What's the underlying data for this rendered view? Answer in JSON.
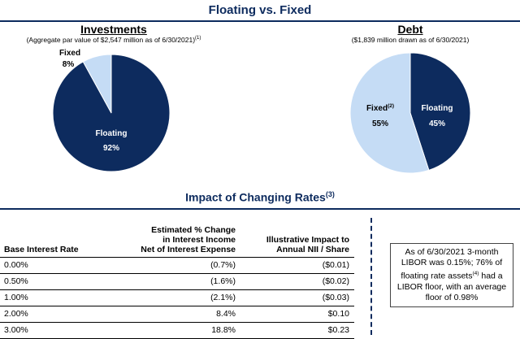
{
  "header": {
    "title": "Floating vs. Fixed"
  },
  "investments": {
    "title": "Investments",
    "subtitle": "(Aggregate par value of $2,547 million as of 6/30/2021)",
    "subtitle_sup": "(1)",
    "labels": {
      "floating": "Floating",
      "floating_pct": "92%",
      "fixed": "Fixed",
      "fixed_pct": "8%"
    }
  },
  "debt": {
    "title": "Debt",
    "subtitle": "($1,839 million drawn as of 6/30/2021)",
    "labels": {
      "floating": "Floating",
      "floating_pct": "45%",
      "fixed": "Fixed",
      "fixed_sup": "(2)",
      "fixed_pct": "55%"
    }
  },
  "colors": {
    "floating": "#0d2b5e",
    "fixed": "#c5dcf5",
    "accent": "#0d2b5e"
  },
  "impact": {
    "title": "Impact of Changing Rates",
    "title_sup": "(3)",
    "columns": {
      "rate": "Base Interest Rate",
      "change_l1": "Estimated % Change",
      "change_l2": "in Interest Income",
      "change_l3": "Net of Interest Expense",
      "nii_l1": "Illustrative Impact to",
      "nii_l2": "Annual NII / Share"
    },
    "rows": [
      {
        "rate": "0.00%",
        "change": "(0.7%)",
        "nii": "($0.01)"
      },
      {
        "rate": "0.50%",
        "change": "(1.6%)",
        "nii": "($0.02)"
      },
      {
        "rate": "1.00%",
        "change": "(2.1%)",
        "nii": "($0.03)"
      },
      {
        "rate": "2.00%",
        "change": "8.4%",
        "nii": "$0.10"
      },
      {
        "rate": "3.00%",
        "change": "18.8%",
        "nii": "$0.23"
      }
    ]
  },
  "note": {
    "part1": "As of 6/30/2021 3-month LIBOR was 0.15%; 76% of floating rate assets",
    "sup": "(4)",
    "part2": " had a LIBOR floor, with an average floor of 0.98%"
  },
  "chart_data": [
    {
      "type": "pie",
      "title": "Investments",
      "categories": [
        "Floating",
        "Fixed"
      ],
      "values": [
        92,
        8
      ],
      "unit": "%"
    },
    {
      "type": "pie",
      "title": "Debt",
      "categories": [
        "Floating",
        "Fixed"
      ],
      "values": [
        45,
        55
      ],
      "unit": "%"
    },
    {
      "type": "table",
      "title": "Impact of Changing Rates",
      "columns": [
        "Base Interest Rate",
        "Estimated % Change in Interest Income Net of Interest Expense",
        "Illustrative Impact to Annual NII / Share"
      ],
      "rows": [
        [
          "0.00%",
          "(0.7%)",
          "($0.01)"
        ],
        [
          "0.50%",
          "(1.6%)",
          "($0.02)"
        ],
        [
          "1.00%",
          "(2.1%)",
          "($0.03)"
        ],
        [
          "2.00%",
          "8.4%",
          "$0.10"
        ],
        [
          "3.00%",
          "18.8%",
          "$0.23"
        ]
      ]
    }
  ]
}
